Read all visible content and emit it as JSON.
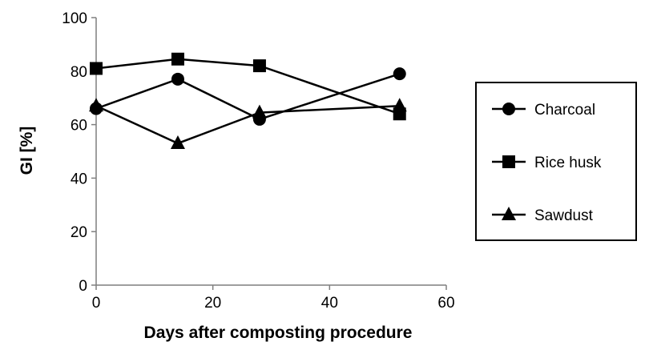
{
  "chart_data": {
    "type": "line",
    "title": "",
    "xlabel": "Days after composting procedure",
    "ylabel": "GI [%]",
    "xlim": [
      0,
      60
    ],
    "ylim": [
      0,
      100
    ],
    "xticks": [
      0,
      20,
      40,
      60
    ],
    "yticks": [
      0,
      20,
      40,
      60,
      80,
      100
    ],
    "grid": false,
    "legend_position": "right",
    "series": [
      {
        "name": "Charcoal",
        "marker": "circle",
        "color": "#000000",
        "x": [
          0,
          14,
          28,
          52
        ],
        "y": [
          66,
          77,
          62,
          79
        ]
      },
      {
        "name": "Rice husk",
        "marker": "square",
        "color": "#000000",
        "x": [
          0,
          14,
          28,
          52
        ],
        "y": [
          81,
          84.5,
          82,
          64
        ]
      },
      {
        "name": "Sawdust",
        "marker": "triangle",
        "color": "#000000",
        "x": [
          0,
          14,
          28,
          52
        ],
        "y": [
          67,
          53,
          64.5,
          67
        ]
      }
    ]
  }
}
